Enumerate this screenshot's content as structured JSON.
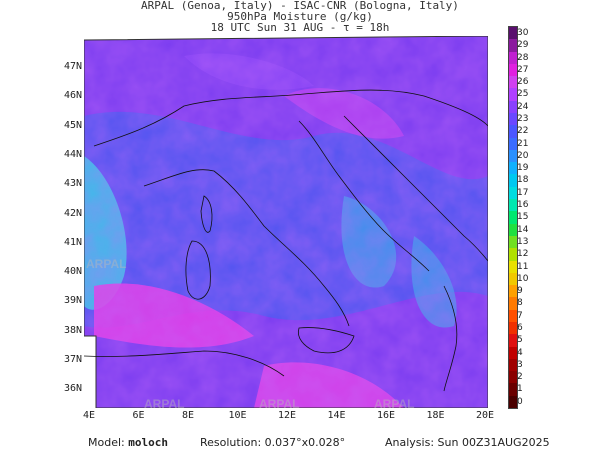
{
  "header": {
    "line1": "ARPAL (Genoa, Italy)  -  ISAC-CNR (Bologna, Italy)",
    "line2": "950hPa Moisture (g/kg)",
    "line3": "18 UTC Sun 31 AUG  -  τ = 18h"
  },
  "map": {
    "lat_labels": [
      "47N",
      "46N",
      "45N",
      "44N",
      "43N",
      "42N",
      "41N",
      "40N",
      "39N",
      "38N",
      "37N",
      "36N"
    ],
    "lon_labels": [
      "4E",
      "6E",
      "8E",
      "10E",
      "12E",
      "14E",
      "16E",
      "18E",
      "20E"
    ],
    "watermark": "ARPAL"
  },
  "colorbar": {
    "labels": [
      "30",
      "29",
      "28",
      "27",
      "26",
      "25",
      "24",
      "23",
      "22",
      "21",
      "20",
      "19",
      "18",
      "17",
      "16",
      "15",
      "14",
      "13",
      "12",
      "11",
      "10",
      "9",
      "8",
      "7",
      "6",
      "5",
      "4",
      "3",
      "2",
      "1",
      "0"
    ],
    "colors": {
      "high": "#5a0f6e",
      "magenta": "#e020e0",
      "purple": "#9b30ff",
      "blue": "#3a4fff",
      "cyan": "#00d8e8",
      "green": "#00e060",
      "yellow": "#f0e000",
      "orange": "#ff8c00",
      "red": "#e01010",
      "low": "#8a0000"
    }
  },
  "footer": {
    "model_label": "Model:",
    "model_name": "moloch",
    "resolution_label": "Resolution: 0.037°x0.028°",
    "analysis_label": "Analysis: Sun 00Z31AUG2025"
  }
}
